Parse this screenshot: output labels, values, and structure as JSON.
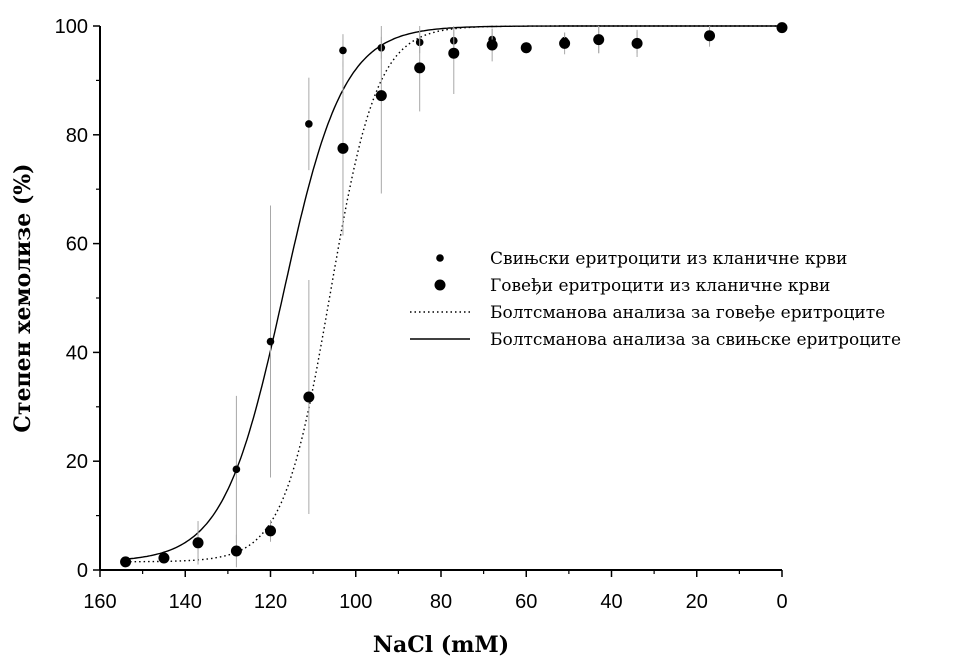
{
  "chart_data": {
    "type": "scatter",
    "xlabel": "NaCl (mM)",
    "ylabel": "Степен хемолизе (%)",
    "xlim": [
      160,
      0
    ],
    "ylim": [
      0,
      100
    ],
    "x_ticks": [
      "160",
      "140",
      "120",
      "100",
      "80",
      "60",
      "40",
      "20",
      "0"
    ],
    "y_ticks": [
      "0",
      "20",
      "40",
      "60",
      "80",
      "100"
    ],
    "grid": false,
    "legend_position": "center-right",
    "series": [
      {
        "name": "Свињски еритроцити из кланичне крви",
        "kind": "points",
        "marker": "small-dot",
        "x": [
          154,
          145,
          137,
          128,
          120,
          111,
          103,
          94,
          85,
          77,
          68,
          60,
          51,
          43,
          34,
          17,
          0
        ],
        "y": [
          1.5,
          2.2,
          5,
          18.5,
          42,
          82,
          95.5,
          96,
          97,
          97.3,
          97.5,
          96,
          97.3,
          97.5,
          97,
          98.5,
          99.7
        ],
        "err": [
          0.5,
          1,
          4,
          13.5,
          25,
          8.5,
          3,
          2,
          2,
          2,
          2,
          1,
          1.5,
          2.5,
          2,
          2,
          0
        ]
      },
      {
        "name": "Говеђи еритроцити из кланичне крви",
        "kind": "points",
        "marker": "large-dot",
        "x": [
          154,
          145,
          137,
          128,
          120,
          111,
          103,
          94,
          85,
          77,
          68,
          60,
          51,
          43,
          34,
          17,
          0
        ],
        "y": [
          1.5,
          2.2,
          5,
          3.5,
          7.2,
          31.8,
          77.5,
          87.2,
          92.3,
          95,
          96.5,
          96,
          96.8,
          97.5,
          96.8,
          98.2,
          99.7
        ],
        "err": [
          0.5,
          1,
          2,
          3,
          2,
          21.5,
          16,
          18,
          8,
          7.5,
          3,
          1,
          2,
          2.5,
          2.5,
          2,
          0
        ]
      },
      {
        "name": "Болтсманова анализа за говеђе еритроците",
        "kind": "curve",
        "style": "dotted",
        "x0": 106,
        "dx": 5.5,
        "bottom": 1.5,
        "top": 100
      },
      {
        "name": "Болтсманова анализа за свињске еритроците",
        "kind": "curve",
        "style": "solid",
        "x0": 117,
        "dx": 7,
        "bottom": 1.5,
        "top": 100
      }
    ]
  }
}
